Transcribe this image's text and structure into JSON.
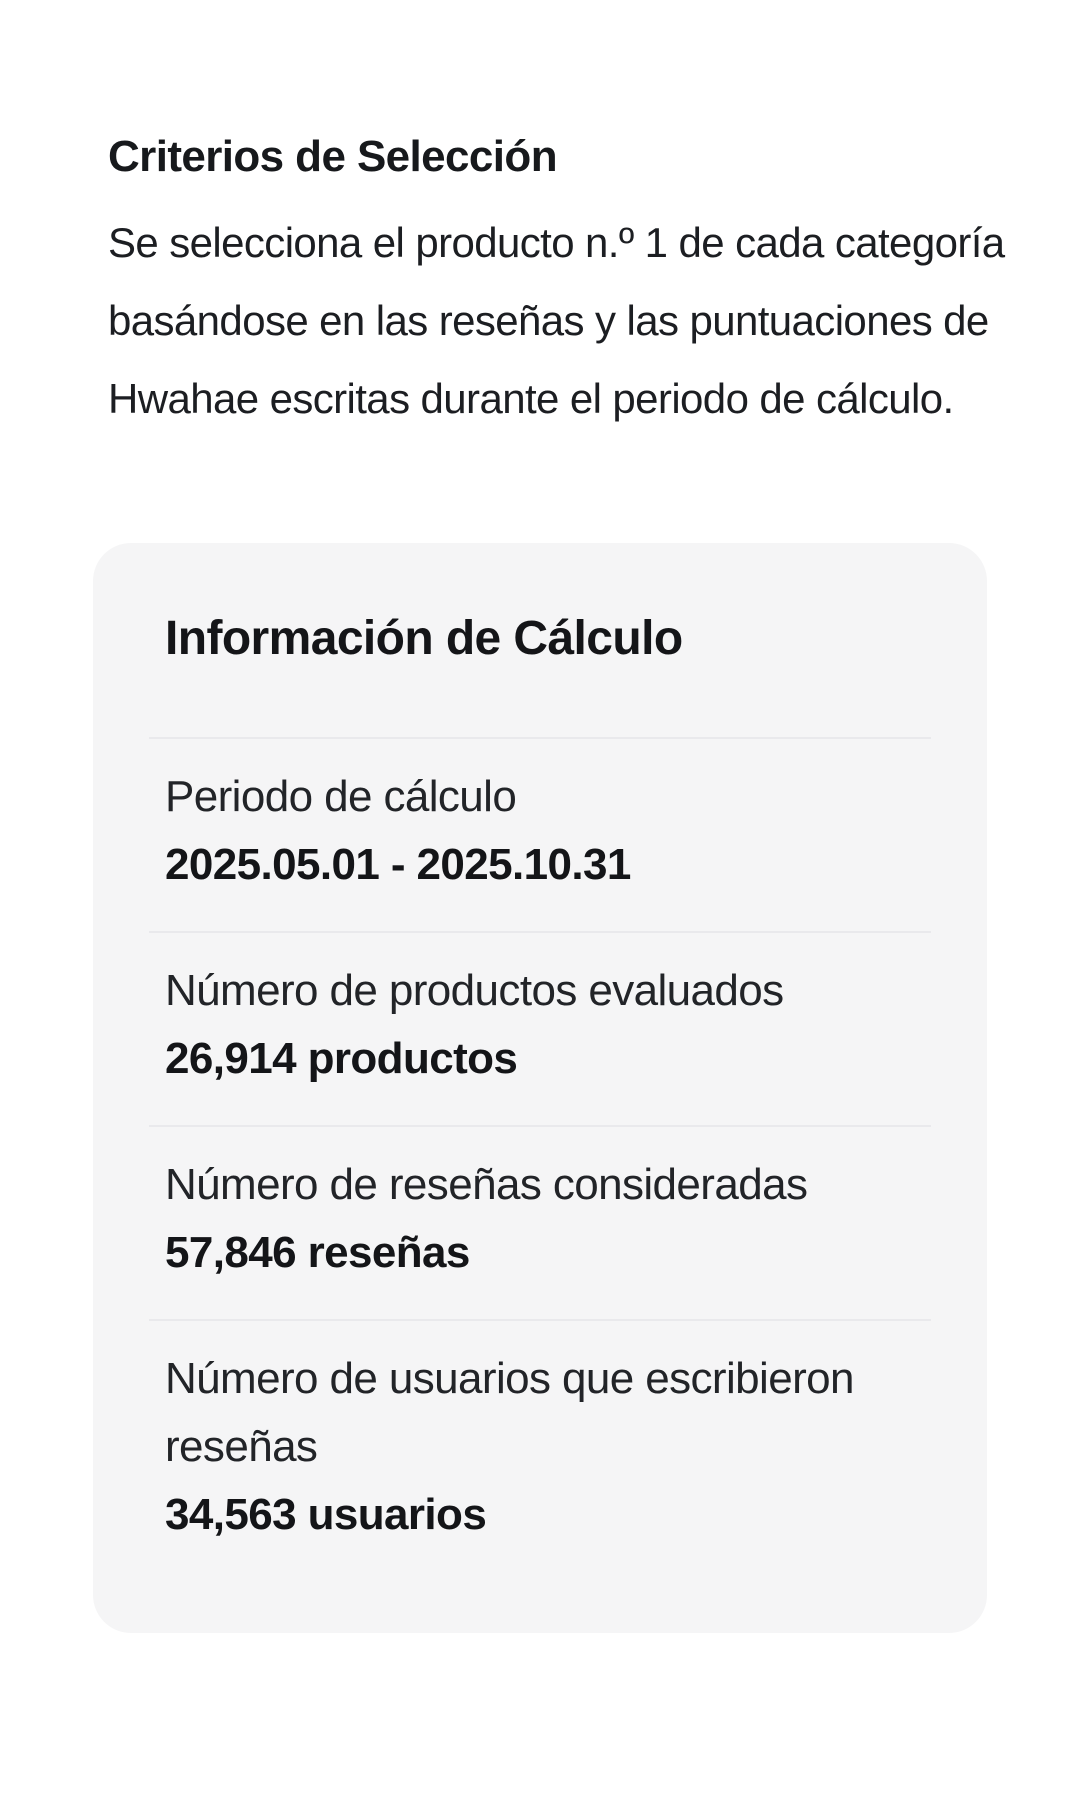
{
  "intro": {
    "heading": "Criterios de Selección",
    "paragraph_lines": {
      "l1": "Se selecciona el producto n.º 1 de cada categoría",
      "l2": "basándose en las reseñas y las puntuaciones de",
      "l3": "Hwahae escritas durante el periodo de cálculo."
    }
  },
  "card": {
    "title": "Información de Cálculo",
    "rows": [
      {
        "label_lines": {
          "l1": "Periodo de cálculo"
        },
        "value": "2025.05.01 - 2025.10.31"
      },
      {
        "label_lines": {
          "l1": "Número de productos evaluados"
        },
        "value": "26,914 productos"
      },
      {
        "label_lines": {
          "l1": "Número de reseñas consideradas"
        },
        "value": "57,846 reseñas"
      },
      {
        "label_lines": {
          "l1": "Número de usuarios que escribieron",
          "l2": "reseñas"
        },
        "value": "34,563 usuarios"
      }
    ]
  },
  "colors": {
    "page_background": "#ffffff",
    "card_background": "#f5f5f6",
    "divider": "#e9e9ec",
    "text_primary": "#17191c"
  }
}
